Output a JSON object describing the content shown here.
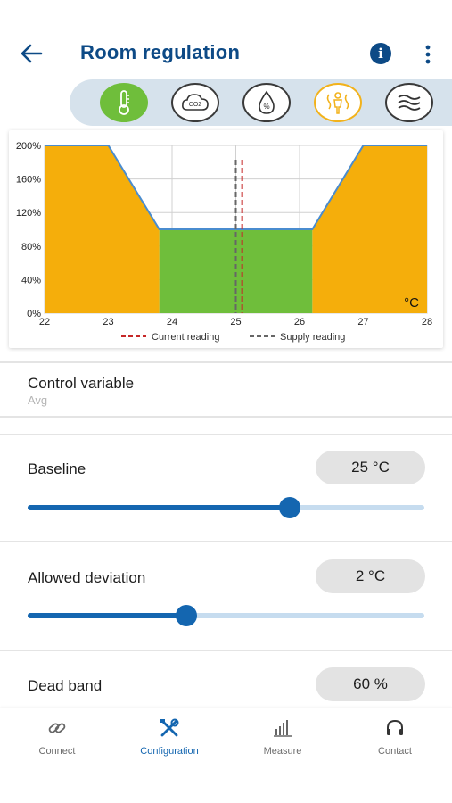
{
  "header": {
    "title": "Room regulation"
  },
  "modes": [
    {
      "name": "temperature-icon",
      "active": true,
      "accent": "#6fbe3b"
    },
    {
      "name": "co2-icon",
      "active": false,
      "label": "CO2"
    },
    {
      "name": "humidity-icon",
      "active": false,
      "label": "%"
    },
    {
      "name": "heat-comfort-icon",
      "active": false,
      "accent": "#f2b21b"
    },
    {
      "name": "air-flow-icon",
      "active": false
    }
  ],
  "chart_data": {
    "type": "area",
    "x": [
      22,
      23,
      23.8,
      24,
      25,
      26,
      26.2,
      27,
      28
    ],
    "series": [
      {
        "values": [
          200,
          200,
          100,
          100,
          100,
          100,
          100,
          200,
          200
        ]
      }
    ],
    "xticks": [
      "22",
      "23",
      "24",
      "25",
      "26",
      "27",
      "28"
    ],
    "yticks": [
      "0%",
      "40%",
      "80%",
      "120%",
      "160%",
      "200%"
    ],
    "xlim": [
      22,
      28
    ],
    "ylim": [
      0,
      200
    ],
    "unit_label": "°C",
    "dead_band_range": [
      23.8,
      26.2
    ],
    "current_reading": 25.1,
    "supply_reading": 25.0,
    "legend": [
      {
        "label": "Current reading",
        "color": "#c62828"
      },
      {
        "label": "Supply reading",
        "color": "#666666"
      }
    ],
    "colors": {
      "active": "#f5ae0b",
      "dead_band": "#6fbe3b",
      "line": "#4a8ccf"
    },
    "grid": true
  },
  "control": {
    "label": "Control variable",
    "value": "Avg"
  },
  "baseline": {
    "label": "Baseline",
    "value": "25 °C",
    "slider_fraction": 0.66
  },
  "deviation": {
    "label": "Allowed deviation",
    "value": "2 °C",
    "slider_fraction": 0.4
  },
  "deadband": {
    "label": "Dead band",
    "value": "60 %"
  },
  "nav": [
    {
      "label": "Connect",
      "icon": "link-icon"
    },
    {
      "label": "Configuration",
      "icon": "tools-icon",
      "active": true
    },
    {
      "label": "Measure",
      "icon": "bar-chart-icon"
    },
    {
      "label": "Contact",
      "icon": "headset-icon"
    }
  ]
}
